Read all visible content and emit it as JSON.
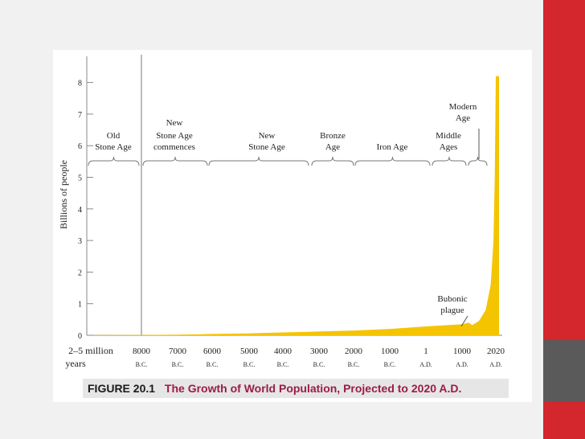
{
  "chart_data": {
    "type": "area",
    "ylabel": "Billions of people",
    "y_ticks": [
      "0",
      "1",
      "2",
      "3",
      "4",
      "5",
      "6",
      "7",
      "8"
    ],
    "ylim": [
      0,
      8.5
    ],
    "x_ticks": [
      {
        "top": "2–5 million",
        "bottom": "years"
      },
      {
        "top": "8000",
        "bottom": "B.C."
      },
      {
        "top": "7000",
        "bottom": "B.C."
      },
      {
        "top": "6000",
        "bottom": "B.C."
      },
      {
        "top": "5000",
        "bottom": "B.C."
      },
      {
        "top": "4000",
        "bottom": "B.C."
      },
      {
        "top": "3000",
        "bottom": "B.C."
      },
      {
        "top": "2000",
        "bottom": "B.C."
      },
      {
        "top": "1000",
        "bottom": "B.C."
      },
      {
        "top": "1",
        "bottom": "A.D."
      },
      {
        "top": "1000",
        "bottom": "A.D."
      },
      {
        "top": "2020",
        "bottom": "A.D."
      }
    ],
    "series": [
      {
        "color": "#f5c400",
        "points": [
          [
            0,
            0.005
          ],
          [
            1,
            0.01
          ],
          [
            2,
            0.02
          ],
          [
            3,
            0.04
          ],
          [
            4,
            0.06
          ],
          [
            5,
            0.09
          ],
          [
            6,
            0.12
          ],
          [
            7,
            0.15
          ],
          [
            8,
            0.2
          ],
          [
            9,
            0.28
          ],
          [
            10,
            0.35
          ],
          [
            10.2,
            0.4
          ],
          [
            10.3,
            0.32
          ],
          [
            10.5,
            0.45
          ],
          [
            10.7,
            0.8
          ],
          [
            10.85,
            1.6
          ],
          [
            10.93,
            3.0
          ],
          [
            10.97,
            5.0
          ],
          [
            11,
            8.2
          ]
        ]
      }
    ],
    "eras": [
      {
        "label": [
          "Old",
          "Stone Age"
        ]
      },
      {
        "label": [
          "New",
          "Stone Age",
          "commences"
        ]
      },
      {
        "label": [
          "New",
          "Stone Age"
        ]
      },
      {
        "label": [
          "Bronze",
          "Age"
        ]
      },
      {
        "label": [
          "Iron Age"
        ]
      },
      {
        "label": [
          "Middle",
          "Ages"
        ]
      },
      {
        "label": [
          "Modern",
          "Age"
        ]
      }
    ],
    "annotations": [
      {
        "label": [
          "Bubonic",
          "plague"
        ]
      }
    ]
  },
  "caption": {
    "number": "FIGURE 20.1",
    "title": "The Growth of World Population, Projected to 2020 A.D."
  },
  "colors": {
    "accent_red": "#d4262d",
    "accent_gray": "#5a5a5a",
    "area_fill": "#f5c400",
    "caption_title": "#9b1c4a"
  }
}
